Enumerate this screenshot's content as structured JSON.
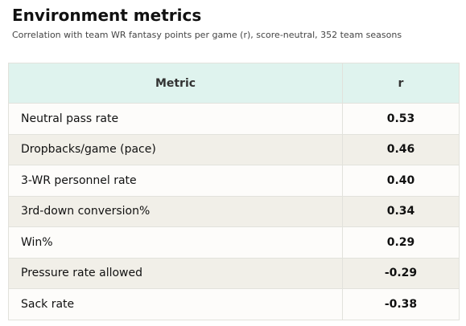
{
  "header": {
    "title": "Environment metrics",
    "subtitle": "Correlation with team WR fantasy points per game (r), score-neutral, 352 team seasons"
  },
  "table": {
    "columns": [
      "Metric",
      "r"
    ],
    "rows": [
      [
        "Neutral pass rate",
        "0.53"
      ],
      [
        "Dropbacks/game (pace)",
        "0.46"
      ],
      [
        "3-WR personnel rate",
        "0.40"
      ],
      [
        "3rd-down conversion%",
        "0.34"
      ],
      [
        "Win%",
        "0.29"
      ],
      [
        "Pressure rate allowed",
        "-0.29"
      ],
      [
        "Sack rate",
        "-0.38"
      ]
    ]
  }
}
